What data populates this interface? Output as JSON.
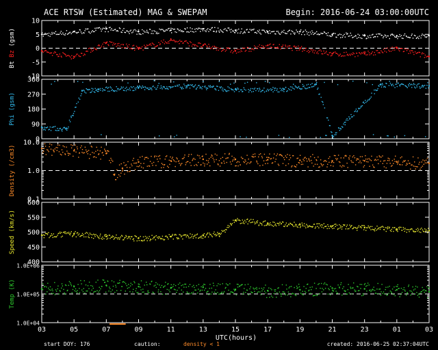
{
  "header": {
    "title": "ACE RTSW (Estimated) MAG & SWEPAM",
    "begin": "Begin: 2016-06-24 03:00:00UTC"
  },
  "footer": {
    "start_doy": "start DOY: 176",
    "caution": "caution:",
    "density_note": "density < 1",
    "created": "created: 2016-06-25 02:37:04UTC"
  },
  "colors": {
    "bt": "#ffffff",
    "bz": "#ff2020",
    "phi": "#33bbee",
    "density": "#ff8c2a",
    "speed": "#e6e62e",
    "temp": "#2ecc2e",
    "axes": "#ffffff",
    "background": "#000000"
  },
  "chart_data": [
    {
      "type": "scatter",
      "panel": "mag",
      "ylabel_parts": [
        "Bt",
        "Bz",
        "(gsm)"
      ],
      "ylim": [
        -10,
        10
      ],
      "yticks": [
        "10",
        "5",
        "0",
        "-5",
        "-10"
      ],
      "yticks_values": [
        10,
        5,
        0,
        -5,
        -10
      ],
      "reference_line": 0,
      "series": [
        {
          "name": "Bt",
          "x": [
            0,
            2,
            4,
            6,
            8,
            10,
            12,
            14,
            16,
            18,
            20,
            22,
            24
          ],
          "y": [
            5,
            6,
            7,
            6,
            6.5,
            7,
            6.5,
            6,
            6,
            5,
            4.5,
            4.5,
            4.5
          ]
        },
        {
          "name": "Bz",
          "x": [
            0,
            2,
            4,
            6,
            8,
            10,
            12,
            14,
            16,
            18,
            20,
            22,
            24
          ],
          "y": [
            -1,
            -3,
            2,
            0,
            3,
            1,
            -1,
            1,
            0,
            -2,
            -2,
            0,
            -3
          ]
        }
      ]
    },
    {
      "type": "scatter",
      "panel": "phi",
      "ylabel": "Phi (gsm)",
      "ylim": [
        0,
        360
      ],
      "yticks": [
        "360",
        "270",
        "180",
        "90",
        "0"
      ],
      "yticks_values": [
        360,
        270,
        180,
        90,
        0
      ],
      "series": [
        {
          "name": "Phi",
          "x": [
            0,
            1.5,
            2.5,
            3.5,
            6,
            9,
            12,
            15,
            17,
            18,
            21,
            24
          ],
          "y": [
            70,
            60,
            290,
            300,
            310,
            320,
            300,
            300,
            330,
            20,
            330,
            320
          ]
        }
      ]
    },
    {
      "type": "scatter",
      "panel": "density",
      "ylabel": "Density (/cm3)",
      "ylim": [
        0.1,
        10
      ],
      "yscale": "log",
      "yticks": [
        "10.0",
        "1.0",
        "0.1"
      ],
      "yticks_values": [
        10,
        1,
        0.1
      ],
      "reference_line": 1,
      "series": [
        {
          "name": "Density",
          "x": [
            0,
            2,
            4,
            4.5,
            5,
            6,
            8,
            10,
            12,
            14,
            16,
            18,
            20,
            22,
            24
          ],
          "y": [
            6,
            5,
            4,
            0.7,
            1.2,
            2,
            2.2,
            2.5,
            2.5,
            2.4,
            2.3,
            2.2,
            2.2,
            2.0,
            1.8
          ]
        }
      ]
    },
    {
      "type": "scatter",
      "panel": "speed",
      "ylabel": "Speed (km/s)",
      "ylim": [
        400,
        600
      ],
      "yticks": [
        "600",
        "550",
        "500",
        "450",
        "400"
      ],
      "yticks_values": [
        600,
        550,
        500,
        450,
        400
      ],
      "series": [
        {
          "name": "Speed",
          "x": [
            0,
            2,
            4,
            6,
            8,
            10,
            11,
            12,
            14,
            16,
            18,
            20,
            22,
            24
          ],
          "y": [
            490,
            495,
            485,
            480,
            485,
            490,
            495,
            540,
            530,
            525,
            520,
            515,
            510,
            505
          ]
        }
      ]
    },
    {
      "type": "scatter",
      "panel": "temp",
      "ylabel": "Temp (K)",
      "ylim": [
        10000,
        1000000
      ],
      "yscale": "log",
      "yticks": [
        "1.0E+06",
        "1.0E+05",
        "1.0E+04"
      ],
      "yticks_values": [
        1000000,
        100000,
        10000
      ],
      "reference_line": 100000,
      "series": [
        {
          "name": "Temp",
          "x": [
            0,
            2,
            4,
            6,
            8,
            10,
            12,
            14,
            16,
            18,
            20,
            22,
            24
          ],
          "y": [
            150000,
            180000,
            200000,
            180000,
            160000,
            170000,
            140000,
            130000,
            140000,
            160000,
            150000,
            140000,
            120000
          ]
        }
      ]
    }
  ],
  "xaxis": {
    "label": "UTC(hours)",
    "range": [
      0,
      24
    ],
    "tick_labels": [
      "03",
      "05",
      "07",
      "09",
      "11",
      "13",
      "15",
      "17",
      "19",
      "21",
      "23",
      "01",
      "03"
    ],
    "tick_positions": [
      0,
      2,
      4,
      6,
      8,
      10,
      12,
      14,
      16,
      18,
      20,
      22,
      24
    ],
    "density_flag_range": [
      4.2,
      5.2
    ]
  }
}
